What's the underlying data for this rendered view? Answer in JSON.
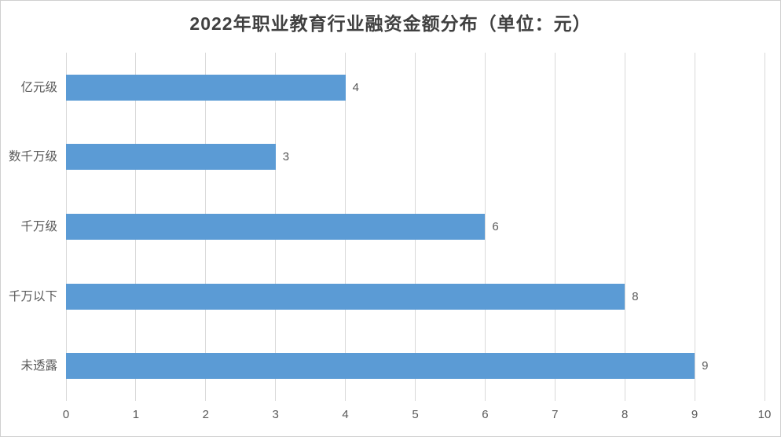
{
  "page": {
    "background": "#FFFFFF",
    "border_color": "#CFCFCF"
  },
  "chart_data": {
    "type": "bar",
    "orientation": "horizontal",
    "title": "2022年职业教育行业融资金额分布（单位：元）",
    "categories": [
      "亿元级",
      "数千万级",
      "千万级",
      "千万以下",
      "未透露"
    ],
    "values": [
      4,
      3,
      6,
      8,
      9
    ],
    "data_labels": [
      "4",
      "3",
      "6",
      "8",
      "9"
    ],
    "xlabel": "",
    "ylabel": "",
    "xlim": [
      0,
      10
    ],
    "xticks": [
      "0",
      "1",
      "2",
      "3",
      "4",
      "5",
      "6",
      "7",
      "8",
      "9",
      "10"
    ],
    "grid": true,
    "legend": false,
    "bar_color": "#5B9BD5",
    "grid_color": "#D9D9D9",
    "label_color": "#595959",
    "title_color": "#404040"
  }
}
